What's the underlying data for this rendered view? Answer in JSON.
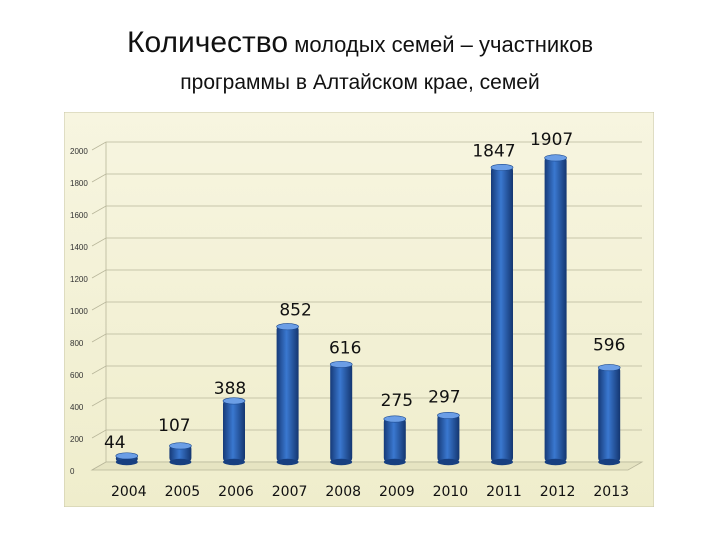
{
  "header": {
    "title_part1": "Количество",
    "title_part2": " молодых семей – участников",
    "title_line2": "программы в Алтайском крае, семей"
  },
  "chart_data": {
    "type": "bar",
    "title": "Количество молодых семей – участников программы в Алтайском крае, семей",
    "categories": [
      "2004",
      "2005",
      "2006",
      "2007",
      "2008",
      "2009",
      "2010",
      "2011",
      "2012",
      "2013"
    ],
    "values": [
      44,
      107,
      388,
      852,
      616,
      275,
      297,
      1847,
      1907,
      596
    ],
    "xlabel": "",
    "ylabel": "",
    "ylim": [
      0,
      2000
    ],
    "yticks": [
      0,
      200,
      400,
      600,
      800,
      1000,
      1200,
      1400,
      1600,
      1800,
      2000
    ],
    "grid": true,
    "legend": "none",
    "bar_color": "#2a5fb0",
    "background_color": "#f4f2d8"
  }
}
